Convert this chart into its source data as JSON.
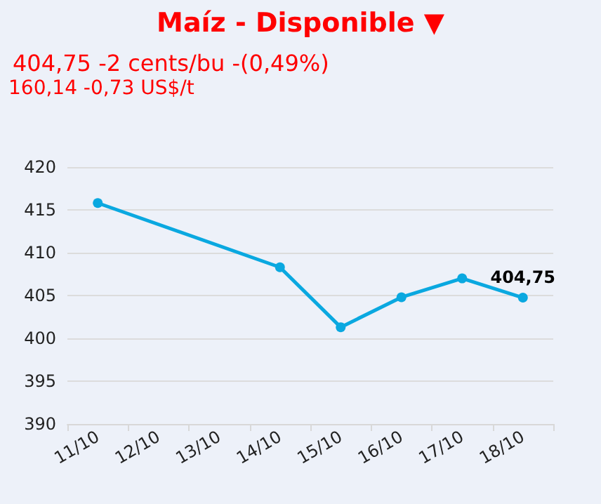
{
  "chart_data": {
    "type": "line",
    "title": "Maíz - Disponible ▼",
    "subtitle": "404,75 -2 cents/bu -(0,49%)",
    "annotations": [
      "160,14 -0,73 US$/t"
    ],
    "categories": [
      "11/10",
      "12/10",
      "13/10",
      "14/10",
      "15/10",
      "16/10",
      "17/10",
      "18/10"
    ],
    "series": [
      {
        "color": "#0aa8e0",
        "values": [
          415.8,
          null,
          null,
          408.3,
          401.3,
          404.8,
          407,
          404.75
        ],
        "value_labels": [
          null,
          null,
          null,
          null,
          null,
          null,
          null,
          "404,75"
        ]
      }
    ],
    "ylim": [
      390,
      420
    ],
    "yticks": [
      390,
      395,
      400,
      405,
      410,
      415,
      420
    ],
    "grid": "y",
    "marker": "circle",
    "line_style": "solid"
  }
}
